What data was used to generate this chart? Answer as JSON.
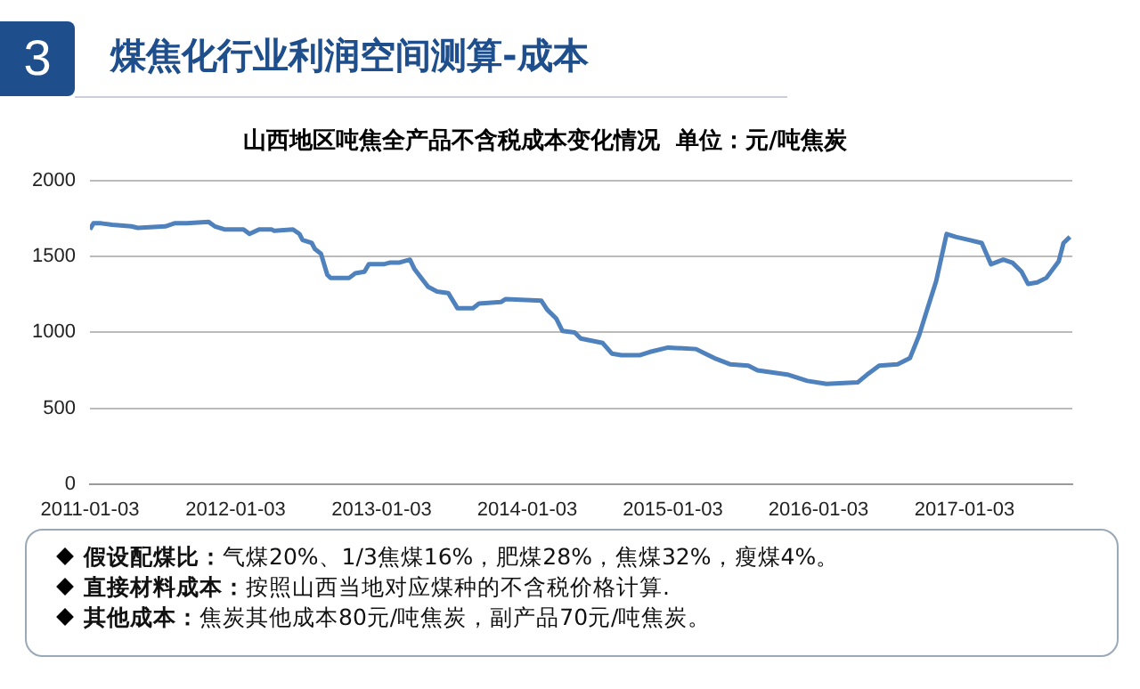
{
  "chart_data": {
    "type": "line",
    "title": "煤焦化行业利润空间测算-成本",
    "subtitle": "山西地区吨焦全产品不含税成本变化情况  单位：元/吨焦炭",
    "annotations": [
      "3",
      "假设配煤比：气煤20%、1/3焦煤16%，肥煤28%，焦煤32%，瘦煤4%。",
      "直接材料成本：按照山西当地对应煤种的不含税价格计算.",
      "其他成本：焦炭其他成本80元/吨焦炭，副产品70元/吨焦炭。"
    ],
    "x": [
      "2011-01-03",
      "2011-01-12",
      "2011-01-31",
      "2011-02-28",
      "2011-04-17",
      "2011-05-03",
      "2011-07-11",
      "2011-08-03",
      "2011-09-03",
      "2011-10-27",
      "2011-11-12",
      "2011-12-06",
      "2012-01-23",
      "2012-02-07",
      "2012-03-02",
      "2012-04-02",
      "2012-04-09",
      "2012-05-26",
      "2012-06-11",
      "2012-06-19",
      "2012-07-12",
      "2012-07-20",
      "2012-08-04",
      "2012-08-20",
      "2012-08-28",
      "2012-10-14",
      "2012-10-29",
      "2012-11-21",
      "2012-12-02",
      "2013-01-08",
      "2013-01-23",
      "2013-02-15",
      "2013-03-15",
      "2013-03-26",
      "2013-04-18",
      "2013-04-30",
      "2013-05-22",
      "2013-06-19",
      "2013-07-12",
      "2013-08-20",
      "2013-09-04",
      "2013-10-29",
      "2013-11-10",
      "2014-02-07",
      "2014-02-22",
      "2014-03-17",
      "2014-04-01",
      "2014-05-02",
      "2014-05-17",
      "2014-07-11",
      "2014-08-03",
      "2014-08-27",
      "2014-10-13",
      "2014-11-05",
      "2014-12-22",
      "2015-03-02",
      "2015-03-25",
      "2015-04-17",
      "2015-05-26",
      "2015-07-11",
      "2015-08-03",
      "2015-10-20",
      "2015-12-06",
      "2016-01-23",
      "2016-04-10",
      "2016-05-03",
      "2016-06-03",
      "2016-07-19",
      "2016-08-19",
      "2016-09-11",
      "2016-09-30",
      "2016-10-24",
      "2016-11-19",
      "2016-12-12",
      "2017-01-15",
      "2017-02-15",
      "2017-03-10",
      "2017-04-10",
      "2017-05-03",
      "2017-05-26",
      "2017-06-11",
      "2017-07-04",
      "2017-07-27",
      "2017-08-27",
      "2017-09-08",
      "2017-09-24"
    ],
    "series": [
      {
        "color": "#4f81bd",
        "values": [
          1680,
          1720,
          1720,
          1710,
          1700,
          1690,
          1700,
          1720,
          1720,
          1730,
          1700,
          1680,
          1680,
          1650,
          1680,
          1680,
          1670,
          1680,
          1650,
          1610,
          1590,
          1550,
          1520,
          1380,
          1360,
          1360,
          1390,
          1400,
          1450,
          1450,
          1460,
          1460,
          1480,
          1420,
          1340,
          1300,
          1270,
          1260,
          1160,
          1160,
          1190,
          1200,
          1220,
          1210,
          1150,
          1090,
          1010,
          1000,
          960,
          930,
          860,
          850,
          850,
          870,
          900,
          890,
          860,
          830,
          790,
          780,
          750,
          720,
          680,
          660,
          670,
          720,
          780,
          790,
          830,
          980,
          1140,
          1340,
          1650,
          1630,
          1610,
          1590,
          1450,
          1480,
          1460,
          1400,
          1320,
          1330,
          1360,
          1470,
          1590,
          1630
        ]
      }
    ],
    "xlim": [
      "2011-01-03",
      "2017-09-30"
    ],
    "xticks": [
      "2011-01-03",
      "2012-01-03",
      "2013-01-03",
      "2014-01-03",
      "2015-01-03",
      "2016-01-03",
      "2017-01-03"
    ],
    "ylim": [
      0,
      2000
    ],
    "yticks": [
      0,
      500,
      1000,
      1500,
      2000
    ],
    "grid": "y",
    "legend": false,
    "marker": "none",
    "line_style": "solid"
  }
}
